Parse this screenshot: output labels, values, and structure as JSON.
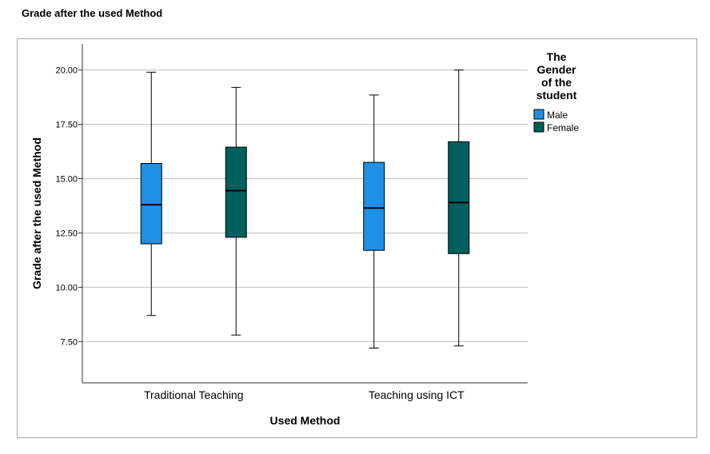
{
  "page": {
    "title": "Grade after the used Method"
  },
  "colors": {
    "male": "#1e90e6",
    "female": "#005f5f",
    "grid": "#c0c0c0",
    "axis": "#333333"
  },
  "chart_data": {
    "type": "boxplot",
    "title": "Grade after the used Method",
    "xlabel": "Used Method",
    "ylabel": "Grade after the used Method",
    "ylim": [
      5.6,
      21.2
    ],
    "yticks": [
      "7.50",
      "10.00",
      "12.50",
      "15.00",
      "17.50",
      "20.00"
    ],
    "grid": true,
    "categories": [
      "Traditional Teaching",
      "Teaching using ICT"
    ],
    "legend": {
      "title_lines": [
        "The",
        "Gender",
        "of the",
        "student"
      ],
      "placement": "right"
    },
    "series": [
      {
        "name": "Male",
        "color": "#1e90e6",
        "boxes": [
          {
            "min": 8.7,
            "q1": 12.0,
            "median": 13.8,
            "q3": 15.7,
            "max": 19.9
          },
          {
            "min": 7.2,
            "q1": 11.7,
            "median": 13.65,
            "q3": 15.75,
            "max": 18.85
          }
        ]
      },
      {
        "name": "Female",
        "color": "#005f5f",
        "boxes": [
          {
            "min": 7.8,
            "q1": 12.3,
            "median": 14.45,
            "q3": 16.45,
            "max": 19.2
          },
          {
            "min": 7.3,
            "q1": 11.55,
            "median": 13.9,
            "q3": 16.7,
            "max": 20.0
          }
        ]
      }
    ]
  }
}
